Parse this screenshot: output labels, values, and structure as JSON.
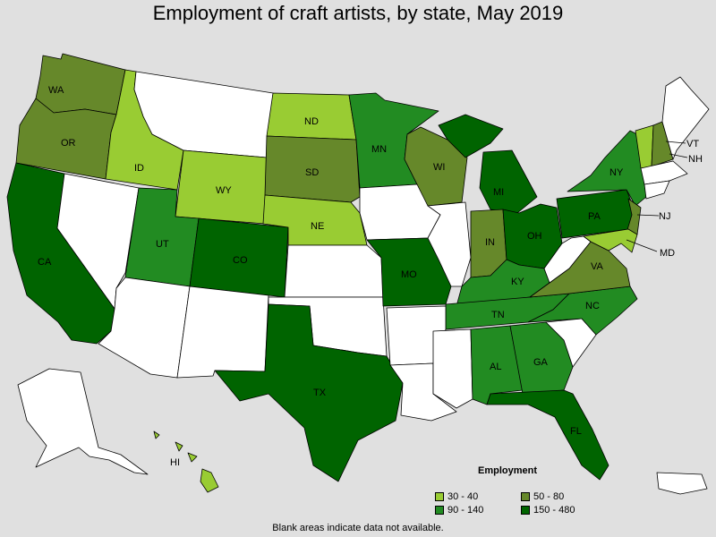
{
  "title": "Employment of craft artists, by state, May 2019",
  "footnote": "Blank areas indicate data not available.",
  "legend": {
    "title": "Employment",
    "items": [
      {
        "label": "30 - 40",
        "color": "#99cc33"
      },
      {
        "label": "50 - 80",
        "color": "#66882a"
      },
      {
        "label": "90 - 140",
        "color": "#228b22"
      },
      {
        "label": "150 - 480",
        "color": "#006400"
      }
    ]
  },
  "colors": {
    "no_data": "#ffffff",
    "c30_40": "#99cc33",
    "c50_80": "#66882a",
    "c90_140": "#228b22",
    "c150_480": "#006400",
    "background": "#e0e0e0"
  },
  "chart_data": {
    "type": "choropleth",
    "metric": "Employment",
    "bins": [
      "30 - 40",
      "50 - 80",
      "90 - 140",
      "150 - 480"
    ],
    "states": {
      "WA": "50 - 80",
      "OR": "50 - 80",
      "CA": "150 - 480",
      "ID": "30 - 40",
      "WY": "30 - 40",
      "UT": "90 - 140",
      "CO": "150 - 480",
      "ND": "30 - 40",
      "SD": "50 - 80",
      "NE": "30 - 40",
      "MN": "90 - 140",
      "WI": "50 - 80",
      "MO": "150 - 480",
      "TX": "150 - 480",
      "MI": "150 - 480",
      "IN": "50 - 80",
      "OH": "150 - 480",
      "KY": "90 - 140",
      "TN": "90 - 140",
      "AL": "90 - 140",
      "GA": "90 - 140",
      "FL": "150 - 480",
      "NC": "90 - 140",
      "VA": "50 - 80",
      "PA": "150 - 480",
      "NY": "90 - 140",
      "NJ": "50 - 80",
      "MD": "30 - 40",
      "VT": "30 - 40",
      "NH": "50 - 80",
      "HI": "30 - 40"
    }
  }
}
